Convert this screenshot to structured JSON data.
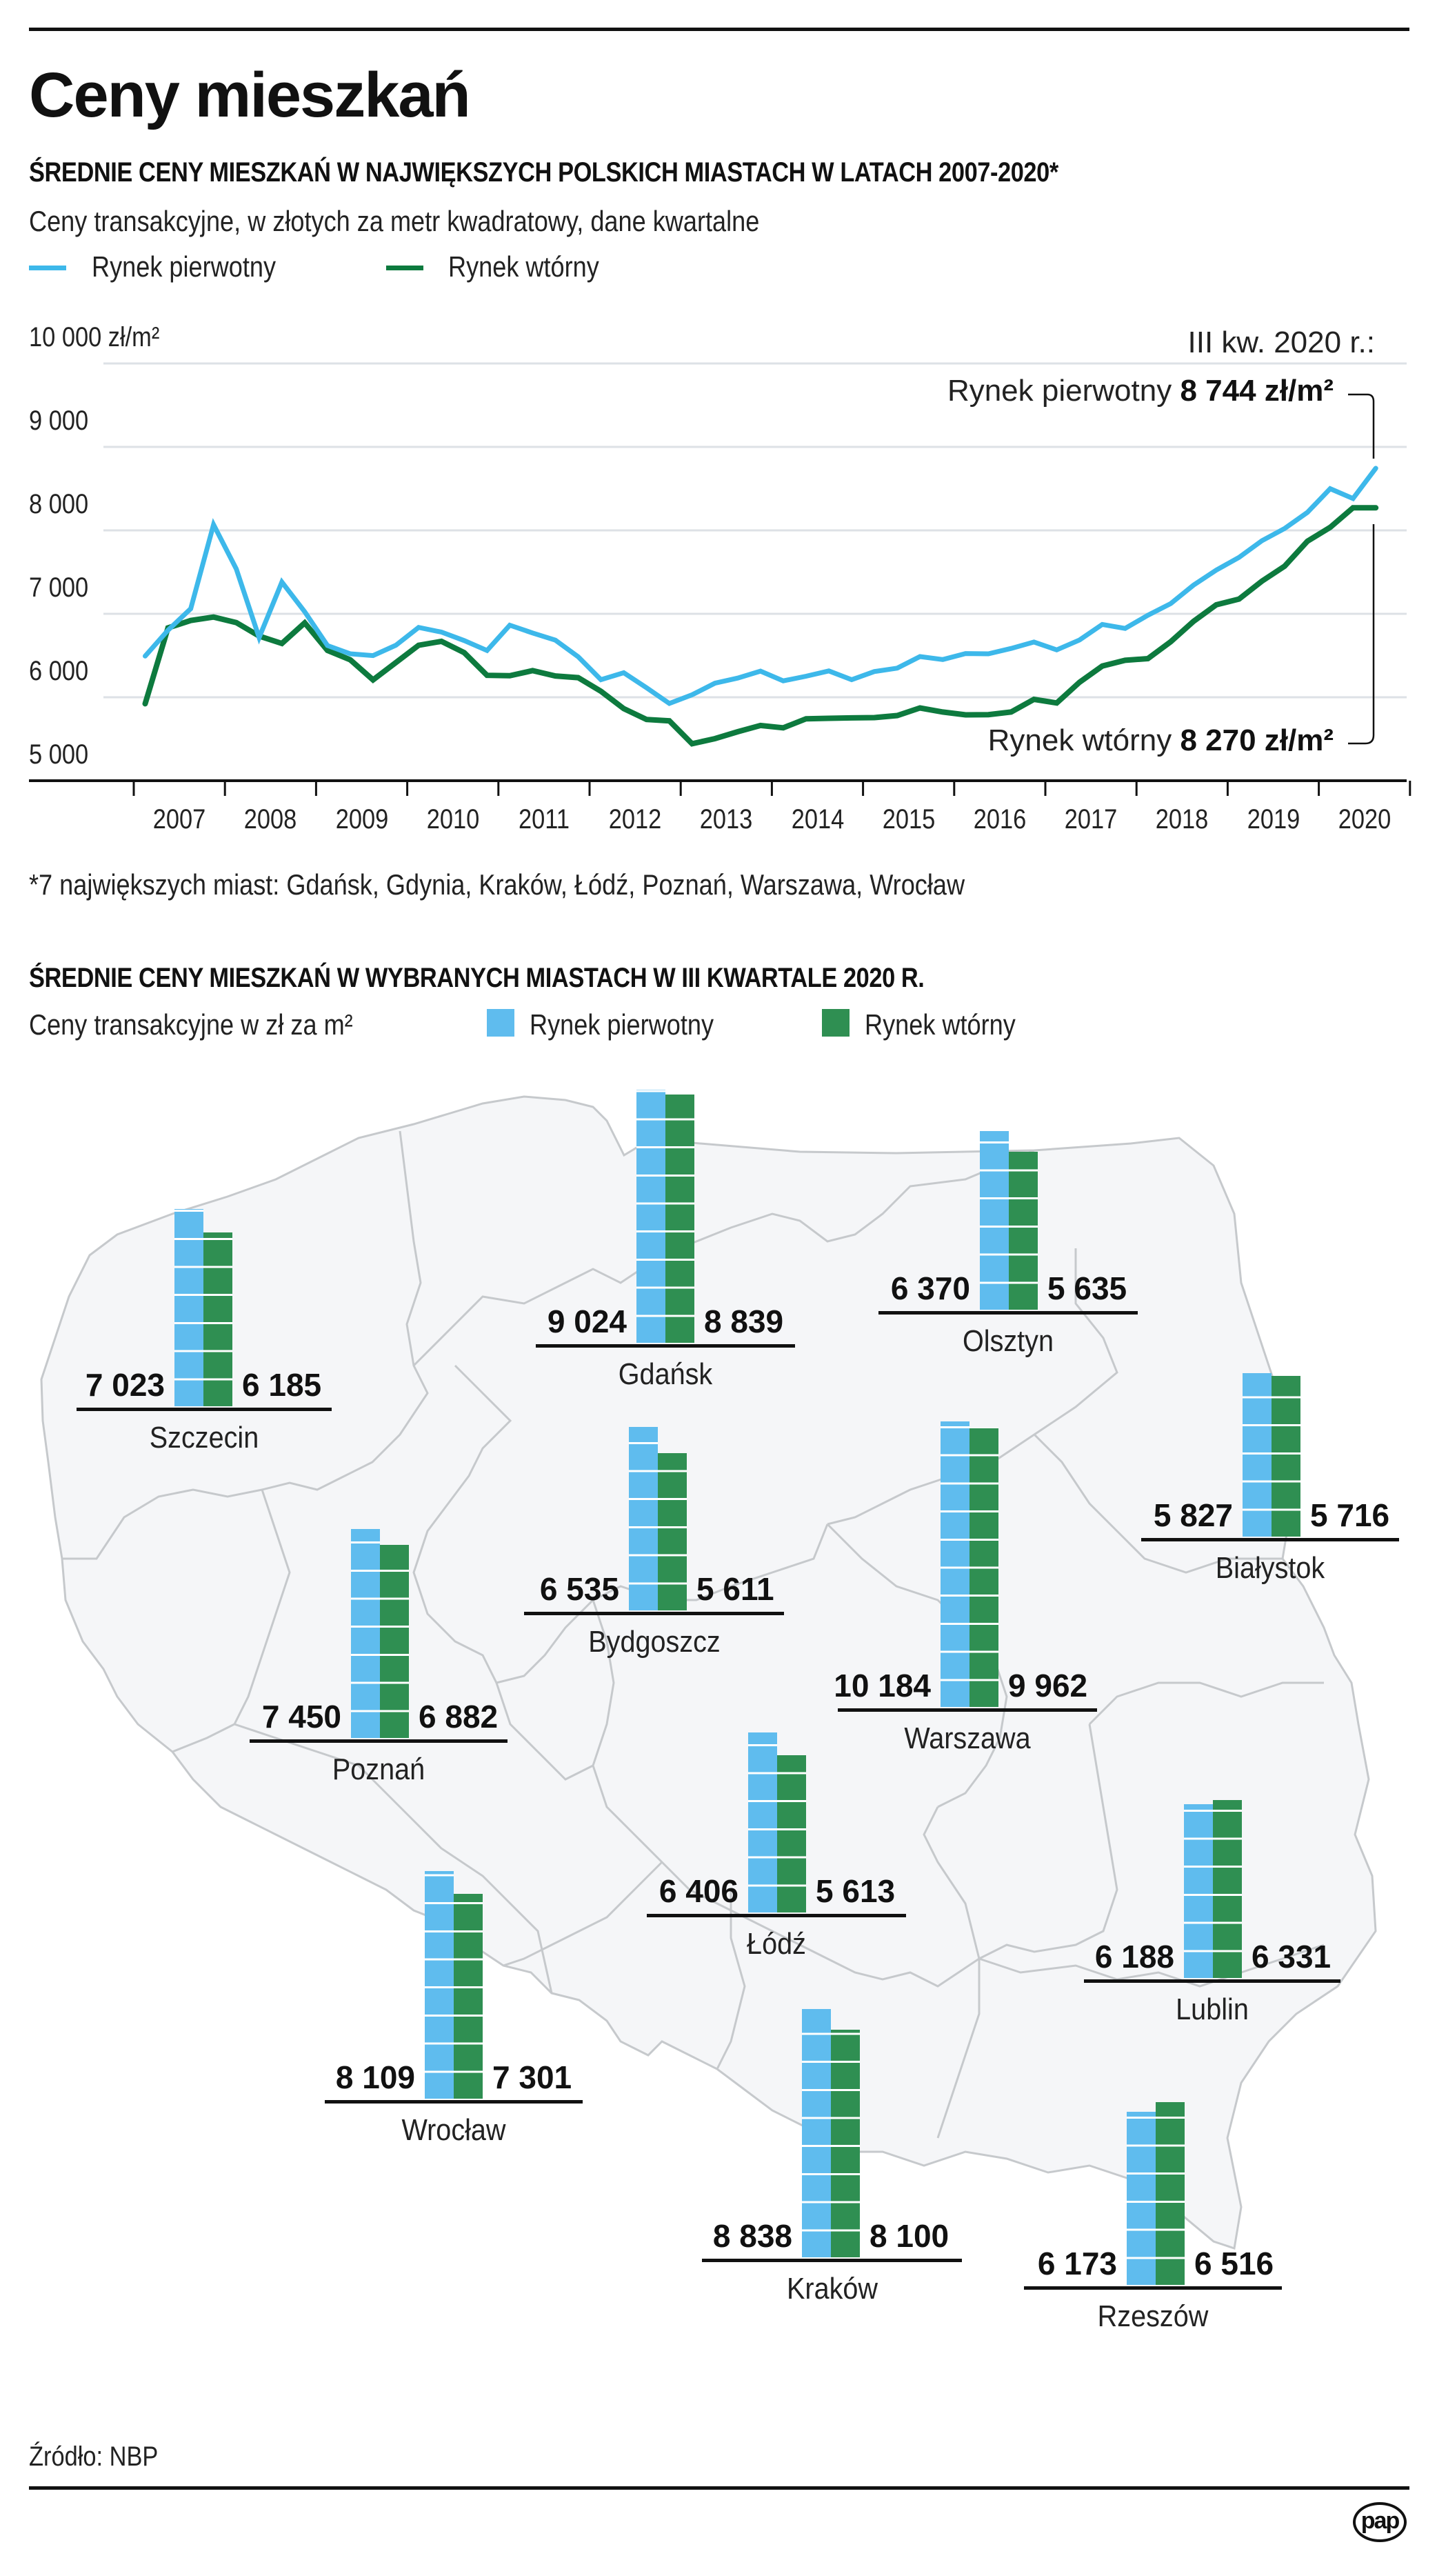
{
  "header": {
    "title": "Ceny mieszkań"
  },
  "line_chart_section": {
    "heading": "ŚREDNIE CENY MIESZKAŃ W NAJWIĘKSZYCH POLSKICH MIASTACH W LATACH 2007-2020*",
    "subtitle": "Ceny transakcyjne, w złotych za metr kwadratowy, dane kwartalne",
    "footnote": "*7 największych miast: Gdańsk, Gdynia, Kraków, Łódź, Poznań, Warszawa, Wrocław",
    "annotation": {
      "period": "III kw. 2020 r.:",
      "primary_label": "Rynek pierwotny",
      "primary_value": "8 744 zł/m²",
      "secondary_label": "Rynek wtórny",
      "secondary_value": "8 270 zł/m²"
    }
  },
  "bar_map_section": {
    "heading": "ŚREDNIE CENY MIESZKAŃ W WYBRANYCH MIASTACH W III KWARTALE 2020 R.",
    "subtitle": "Ceny transakcyjne w zł za m²",
    "legend": [
      "Rynek pierwotny",
      "Rynek wtórny"
    ]
  },
  "footer": {
    "source": "Źródło: NBP",
    "logo_text": "pap"
  },
  "colors": {
    "primary_line": "#3db8ea",
    "secondary_line": "#0d7a3e",
    "primary_bar": "#5fbcee",
    "secondary_bar": "#2f8f52",
    "map_fill": "#f5f6f8",
    "map_stroke": "#c6c9cc",
    "grid": "#dde1e6"
  },
  "chart_data": [
    {
      "type": "line",
      "title": "ŚREDNIE CENY MIESZKAŃ W NAJWIĘKSZYCH POLSKICH MIASTACH W LATACH 2007-2020*",
      "subtitle": "Ceny transakcyjne, w złotych za metr kwadratowy, dane kwartalne",
      "xlabel": "",
      "ylabel": "zł/m²",
      "ylim": [
        5000,
        10000
      ],
      "yticks": [
        "5 000",
        "6 000",
        "7 000",
        "8 000",
        "9 000",
        "10 000 zł/m²"
      ],
      "ytick_values": [
        5000,
        6000,
        7000,
        8000,
        9000,
        10000
      ],
      "xticks": [
        "2007",
        "2008",
        "2009",
        "2010",
        "2011",
        "2012",
        "2013",
        "2014",
        "2015",
        "2016",
        "2017",
        "2018",
        "2019",
        "2020"
      ],
      "x": "quarters 2007 Q1 – 2020 Q3",
      "grid": true,
      "legend": "top-left",
      "series": [
        {
          "name": "Rynek pierwotny",
          "values": [
            6493,
            6803,
            7061,
            8069,
            7537,
            6715,
            7380,
            7025,
            6620,
            6521,
            6499,
            6623,
            6837,
            6781,
            6679,
            6560,
            6864,
            6770,
            6684,
            6485,
            6211,
            6294,
            6114,
            5926,
            6030,
            6169,
            6230,
            6313,
            6197,
            6252,
            6316,
            6211,
            6308,
            6349,
            6488,
            6452,
            6524,
            6521,
            6585,
            6662,
            6568,
            6687,
            6873,
            6825,
            6983,
            7122,
            7343,
            7524,
            7676,
            7875,
            8022,
            8216,
            8499,
            8382,
            8744
          ]
        },
        {
          "name": "Rynek wtórny",
          "values": [
            5922,
            6831,
            6920,
            6961,
            6895,
            6734,
            6645,
            6892,
            6562,
            6449,
            6208,
            6416,
            6623,
            6670,
            6535,
            6263,
            6258,
            6319,
            6255,
            6235,
            6072,
            5864,
            5734,
            5717,
            5443,
            5504,
            5587,
            5662,
            5634,
            5742,
            5748,
            5753,
            5756,
            5781,
            5872,
            5823,
            5789,
            5792,
            5823,
            5975,
            5931,
            6180,
            6374,
            6443,
            6463,
            6665,
            6909,
            7108,
            7177,
            7391,
            7571,
            7870,
            8036,
            8271,
            8270
          ]
        }
      ]
    },
    {
      "type": "bar",
      "title": "ŚREDNIE CENY MIESZKAŃ W WYBRANYCH MIASTACH W III KWARTALE 2020 R.",
      "subtitle": "Ceny transakcyjne w zł za m²",
      "categories": [
        "Szczecin",
        "Gdańsk",
        "Olsztyn",
        "Białystok",
        "Bydgoszcz",
        "Poznań",
        "Warszawa",
        "Łódź",
        "Lublin",
        "Wrocław",
        "Kraków",
        "Rzeszów"
      ],
      "series": [
        {
          "name": "Rynek pierwotny",
          "values": [
            7023,
            9024,
            6370,
            5827,
            6535,
            7450,
            10184,
            6406,
            6188,
            8109,
            8838,
            6173
          ],
          "labels": [
            "7 023",
            "9 024",
            "6 370",
            "5 827",
            "6 535",
            "7 450",
            "10 184",
            "6 406",
            "6 188",
            "8 109",
            "8 838",
            "6 173"
          ]
        },
        {
          "name": "Rynek wtórny",
          "values": [
            6185,
            8839,
            5635,
            5716,
            5611,
            6882,
            9962,
            5613,
            6331,
            7301,
            8100,
            6516
          ],
          "labels": [
            "6 185",
            "8 839",
            "5 635",
            "5 716",
            "5 611",
            "6 882",
            "9 962",
            "5 613",
            "6 331",
            "7 301",
            "8 100",
            "6 516"
          ]
        }
      ],
      "legend": "top-left"
    }
  ]
}
